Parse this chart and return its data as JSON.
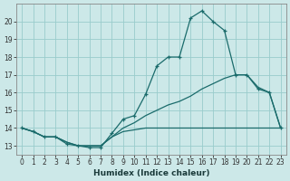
{
  "xlabel": "Humidex (Indice chaleur)",
  "ylabel": "",
  "bg_color": "#cce8e8",
  "grid_color": "#99cccc",
  "line_color": "#1a6b6b",
  "xlim": [
    -0.5,
    23.5
  ],
  "ylim": [
    12.5,
    21.0
  ],
  "yticks": [
    13,
    14,
    15,
    16,
    17,
    18,
    19,
    20
  ],
  "xticks": [
    0,
    1,
    2,
    3,
    4,
    5,
    6,
    7,
    8,
    9,
    10,
    11,
    12,
    13,
    14,
    15,
    16,
    17,
    18,
    19,
    20,
    21,
    22,
    23
  ],
  "line1_x": [
    0,
    1,
    2,
    3,
    4,
    5,
    6,
    7,
    8,
    9,
    10,
    11,
    12,
    13,
    14,
    15,
    16,
    17,
    18,
    19,
    20,
    21,
    22,
    23
  ],
  "line1_y": [
    14.0,
    13.8,
    13.5,
    13.5,
    13.1,
    13.0,
    12.9,
    12.9,
    13.7,
    14.5,
    14.7,
    15.9,
    17.5,
    18.0,
    18.0,
    20.2,
    20.6,
    20.0,
    19.5,
    17.0,
    17.0,
    16.2,
    16.0,
    14.0
  ],
  "line2_x": [
    0,
    1,
    2,
    3,
    4,
    5,
    6,
    7,
    8,
    9,
    10,
    11,
    12,
    13,
    14,
    15,
    16,
    17,
    18,
    19,
    20,
    21,
    22,
    23
  ],
  "line2_y": [
    14.0,
    13.8,
    13.5,
    13.5,
    13.2,
    13.0,
    13.0,
    13.0,
    13.5,
    13.8,
    13.9,
    14.0,
    14.0,
    14.0,
    14.0,
    14.0,
    14.0,
    14.0,
    14.0,
    14.0,
    14.0,
    14.0,
    14.0,
    14.0
  ],
  "line3_x": [
    0,
    1,
    2,
    3,
    4,
    5,
    6,
    7,
    8,
    9,
    10,
    11,
    12,
    13,
    14,
    15,
    16,
    17,
    18,
    19,
    20,
    21,
    22,
    23
  ],
  "line3_y": [
    14.0,
    13.8,
    13.5,
    13.5,
    13.2,
    13.0,
    13.0,
    13.0,
    13.5,
    14.0,
    14.3,
    14.7,
    15.0,
    15.3,
    15.5,
    15.8,
    16.2,
    16.5,
    16.8,
    17.0,
    17.0,
    16.3,
    16.0,
    14.0
  ]
}
